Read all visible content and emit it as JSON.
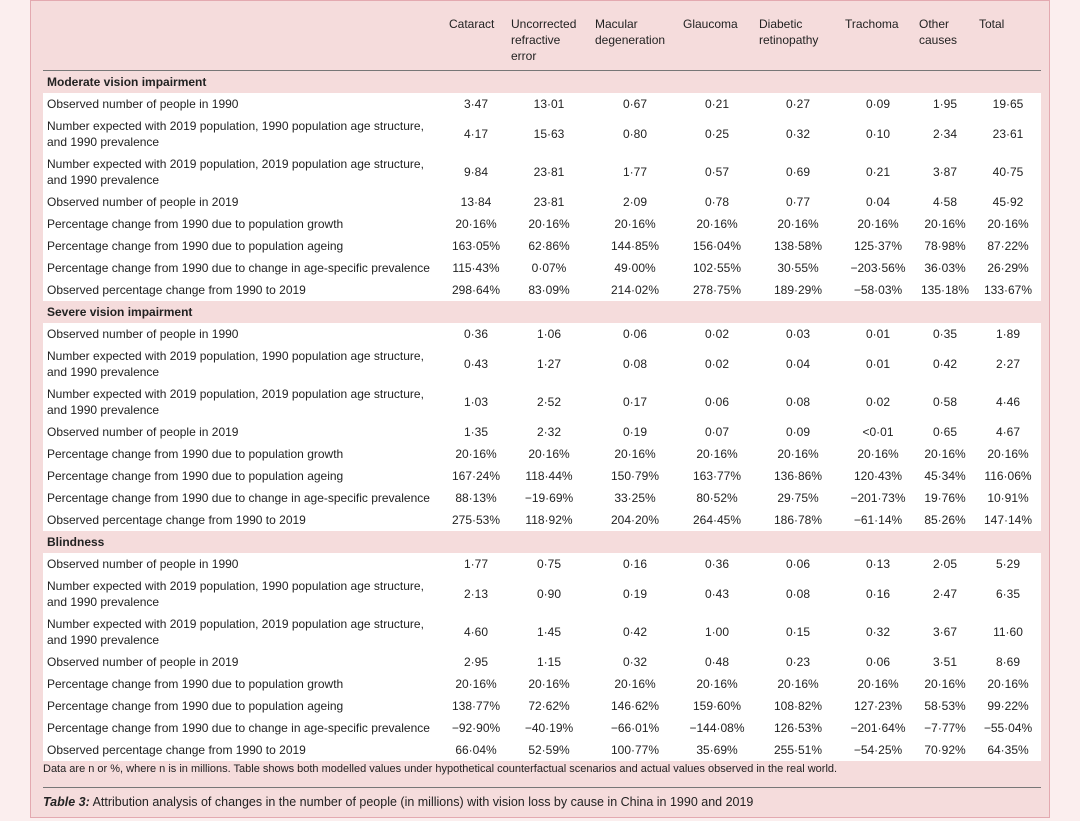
{
  "table": {
    "columns": [
      "Cataract",
      "Uncorrected refractive error",
      "Macular degeneration",
      "Glaucoma",
      "Diabetic retinopathy",
      "Trachoma",
      "Other causes",
      "Total"
    ],
    "sections": [
      {
        "title": "Moderate vision impairment",
        "rows": [
          {
            "label": "Observed number of people in 1990",
            "values": [
              "3·47",
              "13·01",
              "0·67",
              "0·21",
              "0·27",
              "0·09",
              "1·95",
              "19·65"
            ]
          },
          {
            "label": "Number expected with 2019 population, 1990 population age structure, and 1990 prevalence",
            "values": [
              "4·17",
              "15·63",
              "0·80",
              "0·25",
              "0·32",
              "0·10",
              "2·34",
              "23·61"
            ]
          },
          {
            "label": "Number expected with 2019 population, 2019 population age structure, and 1990 prevalence",
            "values": [
              "9·84",
              "23·81",
              "1·77",
              "0·57",
              "0·69",
              "0·21",
              "3·87",
              "40·75"
            ]
          },
          {
            "label": "Observed number of people in 2019",
            "values": [
              "13·84",
              "23·81",
              "2·09",
              "0·78",
              "0·77",
              "0·04",
              "4·58",
              "45·92"
            ]
          },
          {
            "label": "Percentage change from 1990 due to population growth",
            "values": [
              "20·16%",
              "20·16%",
              "20·16%",
              "20·16%",
              "20·16%",
              "20·16%",
              "20·16%",
              "20·16%"
            ]
          },
          {
            "label": "Percentage change from 1990 due to population ageing",
            "values": [
              "163·05%",
              "62·86%",
              "144·85%",
              "156·04%",
              "138·58%",
              "125·37%",
              "78·98%",
              "87·22%"
            ]
          },
          {
            "label": "Percentage change from 1990 due to change in age-specific prevalence",
            "values": [
              "115·43%",
              "0·07%",
              "49·00%",
              "102·55%",
              "30·55%",
              "−203·56%",
              "36·03%",
              "26·29%"
            ]
          },
          {
            "label": "Observed percentage change from 1990 to 2019",
            "values": [
              "298·64%",
              "83·09%",
              "214·02%",
              "278·75%",
              "189·29%",
              "−58·03%",
              "135·18%",
              "133·67%"
            ]
          }
        ]
      },
      {
        "title": "Severe vision impairment",
        "rows": [
          {
            "label": "Observed number of people in 1990",
            "values": [
              "0·36",
              "1·06",
              "0·06",
              "0·02",
              "0·03",
              "0·01",
              "0·35",
              "1·89"
            ]
          },
          {
            "label": "Number expected with 2019 population, 1990 population age structure, and 1990 prevalence",
            "values": [
              "0·43",
              "1·27",
              "0·08",
              "0·02",
              "0·04",
              "0·01",
              "0·42",
              "2·27"
            ]
          },
          {
            "label": "Number expected with 2019 population, 2019 population age structure, and 1990 prevalence",
            "values": [
              "1·03",
              "2·52",
              "0·17",
              "0·06",
              "0·08",
              "0·02",
              "0·58",
              "4·46"
            ]
          },
          {
            "label": "Observed number of people in 2019",
            "values": [
              "1·35",
              "2·32",
              "0·19",
              "0·07",
              "0·09",
              "<0·01",
              "0·65",
              "4·67"
            ]
          },
          {
            "label": "Percentage change from 1990 due to population growth",
            "values": [
              "20·16%",
              "20·16%",
              "20·16%",
              "20·16%",
              "20·16%",
              "20·16%",
              "20·16%",
              "20·16%"
            ]
          },
          {
            "label": "Percentage change from 1990 due to population ageing",
            "values": [
              "167·24%",
              "118·44%",
              "150·79%",
              "163·77%",
              "136·86%",
              "120·43%",
              "45·34%",
              "116·06%"
            ]
          },
          {
            "label": "Percentage change from 1990 due to change in age-specific prevalence",
            "values": [
              "88·13%",
              "−19·69%",
              "33·25%",
              "80·52%",
              "29·75%",
              "−201·73%",
              "19·76%",
              "10·91%"
            ]
          },
          {
            "label": "Observed percentage change from 1990 to 2019",
            "values": [
              "275·53%",
              "118·92%",
              "204·20%",
              "264·45%",
              "186·78%",
              "−61·14%",
              "85·26%",
              "147·14%"
            ]
          }
        ]
      },
      {
        "title": "Blindness",
        "rows": [
          {
            "label": "Observed number of people in 1990",
            "values": [
              "1·77",
              "0·75",
              "0·16",
              "0·36",
              "0·06",
              "0·13",
              "2·05",
              "5·29"
            ]
          },
          {
            "label": "Number expected with 2019 population, 1990 population age structure, and 1990 prevalence",
            "values": [
              "2·13",
              "0·90",
              "0·19",
              "0·43",
              "0·08",
              "0·16",
              "2·47",
              "6·35"
            ]
          },
          {
            "label": "Number expected with 2019 population, 2019 population age structure, and 1990 prevalence",
            "values": [
              "4·60",
              "1·45",
              "0·42",
              "1·00",
              "0·15",
              "0·32",
              "3·67",
              "11·60"
            ]
          },
          {
            "label": "Observed number of people in 2019",
            "values": [
              "2·95",
              "1·15",
              "0·32",
              "0·48",
              "0·23",
              "0·06",
              "3·51",
              "8·69"
            ]
          },
          {
            "label": "Percentage change from 1990 due to population growth",
            "values": [
              "20·16%",
              "20·16%",
              "20·16%",
              "20·16%",
              "20·16%",
              "20·16%",
              "20·16%",
              "20·16%"
            ]
          },
          {
            "label": "Percentage change from 1990 due to population ageing",
            "values": [
              "138·77%",
              "72·62%",
              "146·62%",
              "159·60%",
              "108·82%",
              "127·23%",
              "58·53%",
              "99·22%"
            ]
          },
          {
            "label": "Percentage change from 1990 due to change in age-specific prevalence",
            "values": [
              "−92·90%",
              "−40·19%",
              "−66·01%",
              "−144·08%",
              "126·53%",
              "−201·64%",
              "−7·77%",
              "−55·04%"
            ]
          },
          {
            "label": "Observed percentage change from 1990 to 2019",
            "values": [
              "66·04%",
              "52·59%",
              "100·77%",
              "35·69%",
              "255·51%",
              "−54·25%",
              "70·92%",
              "64·35%"
            ]
          }
        ]
      }
    ]
  },
  "footnote": "Data are n or %, where n is in millions. Table shows both modelled values under hypothetical counterfactual scenarios and actual values observed in the real world.",
  "caption": {
    "label": "Table 3:",
    "text": "Attribution analysis of changes in the number of people (in millions) with vision loss by cause in China in 1990 and 2019"
  }
}
